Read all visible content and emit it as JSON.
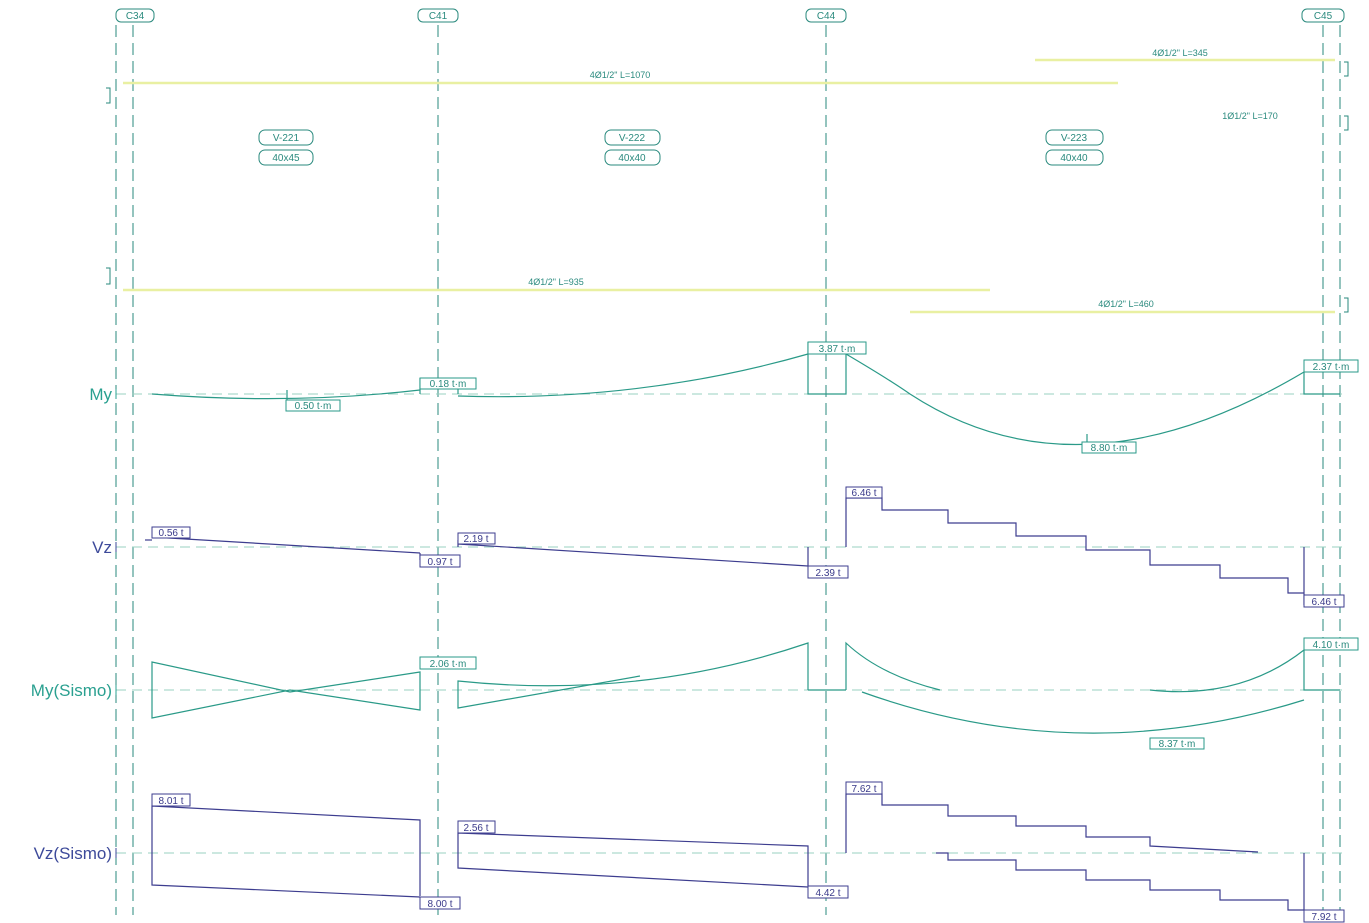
{
  "colors": {
    "green": "#2a9a88",
    "blue": "#3d3d8f",
    "rebar": "#e9f0a2",
    "axis_dash": "#9ad0c0",
    "col_line": "#2a8a7e",
    "axis_label_green": "#2aa090",
    "axis_label_blue": "#3d4a9a"
  },
  "columns": [
    "C34",
    "C41",
    "C44",
    "C45"
  ],
  "beams": [
    {
      "name": "V-221",
      "section": "40x45"
    },
    {
      "name": "V-222",
      "section": "40x40"
    },
    {
      "name": "V-223",
      "section": "40x40"
    }
  ],
  "rebar_labels": {
    "top_main": "4Ø1/2\" L=1070",
    "top_right": "4Ø1/2\" L=345",
    "top_extra": "1Ø1/2\" L=170",
    "bottom_main": "4Ø1/2\" L=935",
    "bottom_right": "4Ø1/2\" L=460"
  },
  "diagram_labels": {
    "my": "My",
    "vz": "Vz",
    "my_sismo": "My(Sismo)",
    "vz_sismo": "Vz(Sismo)"
  },
  "my_values": [
    "0.50 t·m",
    "0.18 t·m",
    "3.87 t·m",
    "8.80 t·m",
    "2.37 t·m"
  ],
  "vz_values": [
    "0.56 t",
    "0.97 t",
    "2.19 t",
    "2.39 t",
    "6.46 t",
    "6.46 t"
  ],
  "my_sismo_values": [
    "2.06 t·m",
    "8.37 t·m",
    "4.10 t·m"
  ],
  "vz_sismo_values": [
    "8.01 t",
    "2.56 t",
    "8.00 t",
    "4.42 t",
    "7.62 t",
    "7.92 t"
  ]
}
